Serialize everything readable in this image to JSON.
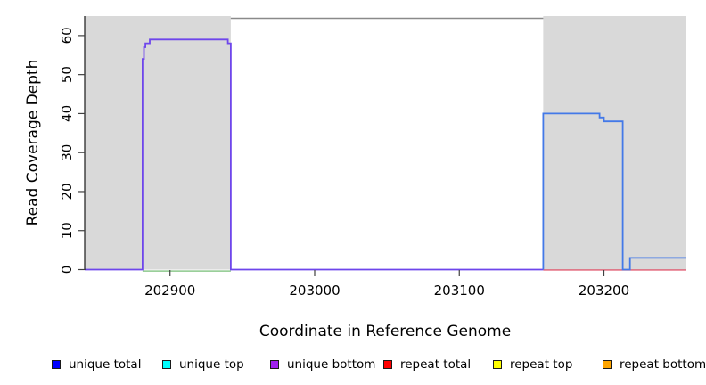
{
  "chart_data": {
    "type": "line",
    "title": "",
    "xlabel": "Coordinate in Reference Genome",
    "ylabel": "Read Coverage Depth",
    "xlim": [
      202841,
      203257
    ],
    "ylim": [
      0,
      65
    ],
    "x_ticks": [
      202900,
      203000,
      203100,
      203200
    ],
    "y_ticks": [
      0,
      10,
      20,
      30,
      40,
      50,
      60
    ],
    "grid": false,
    "plot_background": "#ffffff",
    "shading_color": "#d9d9d9",
    "box_top_border_color": "#8a8a8a",
    "shaded_regions": [
      {
        "name": "repeat-region-left",
        "x0": 202841,
        "x1": 202942
      },
      {
        "name": "repeat-region-right",
        "x0": 203158,
        "x1": 203257
      }
    ],
    "series": [
      {
        "id": "zero-line-green-left-repeat",
        "color": "#8cc88c",
        "step_points": [
          [
            202881,
            0
          ]
        ],
        "end_x": 202942
      },
      {
        "id": "zero-line-red-right-repeat",
        "color": "#e05a70",
        "step_points": [
          [
            203158,
            0
          ]
        ],
        "end_x": 203257
      },
      {
        "id": "unique-coverage-left-violet",
        "color": "#6e46eb",
        "step_points": [
          [
            202841,
            0
          ],
          [
            202881,
            54
          ],
          [
            202882,
            57
          ],
          [
            202883,
            58
          ],
          [
            202886,
            59
          ],
          [
            202940,
            58
          ],
          [
            202942,
            0
          ]
        ],
        "end_x": 203158
      },
      {
        "id": "unique-coverage-right-blue",
        "color": "#4379e8",
        "step_points": [
          [
            203158,
            0
          ],
          [
            203158,
            40
          ],
          [
            203197,
            39
          ],
          [
            203200,
            38
          ],
          [
            203213,
            0
          ],
          [
            203218,
            3
          ]
        ],
        "end_x": 203257
      }
    ],
    "legend": [
      {
        "label": "unique total",
        "color": "#0000ff"
      },
      {
        "label": "unique top",
        "color": "#00ffff"
      },
      {
        "label": "unique bottom",
        "color": "#a020f0"
      },
      {
        "label": "repeat total",
        "color": "#ff0000"
      },
      {
        "label": "repeat top",
        "color": "#ffff00"
      },
      {
        "label": "repeat bottom",
        "color": "#ffa500"
      }
    ]
  }
}
